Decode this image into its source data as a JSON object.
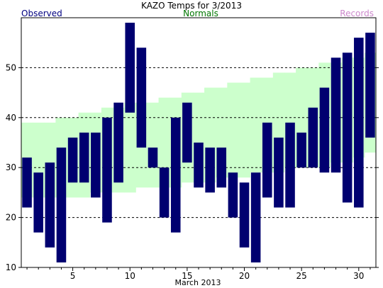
{
  "chart_data": {
    "type": "bar",
    "title": "KAZO Temps for  3/2013",
    "legend": {
      "observed": "Observed",
      "normals": "Normals",
      "records": "Records"
    },
    "xlabel": "March 2013",
    "ylabel": "",
    "xlim": [
      1,
      31
    ],
    "ylim": [
      10,
      60
    ],
    "x_ticks": [
      5,
      10,
      15,
      20,
      25,
      30
    ],
    "y_ticks": [
      10,
      20,
      30,
      40,
      50
    ],
    "gridlines_y": [
      20,
      30,
      40,
      50
    ],
    "colors": {
      "observed": "#000070",
      "normals": "#ccffcc",
      "title": "#000000",
      "observed_label": "#000080",
      "normals_label": "#007700",
      "records_label": "#cc88cc"
    },
    "days": [
      1,
      2,
      3,
      4,
      5,
      6,
      7,
      8,
      9,
      10,
      11,
      12,
      13,
      14,
      15,
      16,
      17,
      18,
      19,
      20,
      21,
      22,
      23,
      24,
      25,
      26,
      27,
      28,
      29,
      30,
      31
    ],
    "observed_high": [
      32,
      29,
      31,
      34,
      36,
      37,
      37,
      40,
      43,
      59,
      54,
      34,
      30,
      40,
      43,
      35,
      34,
      34,
      29,
      27,
      29,
      39,
      36,
      39,
      37,
      42,
      46,
      52,
      53,
      56,
      57
    ],
    "observed_low": [
      22,
      17,
      14,
      11,
      27,
      27,
      24,
      19,
      27,
      41,
      34,
      30,
      20,
      17,
      31,
      26,
      25,
      26,
      20,
      14,
      11,
      24,
      22,
      22,
      30,
      30,
      29,
      29,
      23,
      22,
      36
    ],
    "normal_high": [
      39,
      39,
      39,
      40,
      40,
      41,
      41,
      42,
      42,
      43,
      43,
      43,
      44,
      44,
      45,
      45,
      46,
      46,
      47,
      47,
      48,
      48,
      49,
      49,
      50,
      50,
      51,
      51,
      52,
      52,
      53
    ],
    "normal_low": [
      24,
      24,
      24,
      24,
      24,
      24,
      25,
      25,
      25,
      25,
      26,
      26,
      26,
      26,
      27,
      27,
      27,
      28,
      28,
      28,
      29,
      29,
      29,
      30,
      30,
      30,
      30,
      31,
      31,
      32,
      33
    ]
  }
}
